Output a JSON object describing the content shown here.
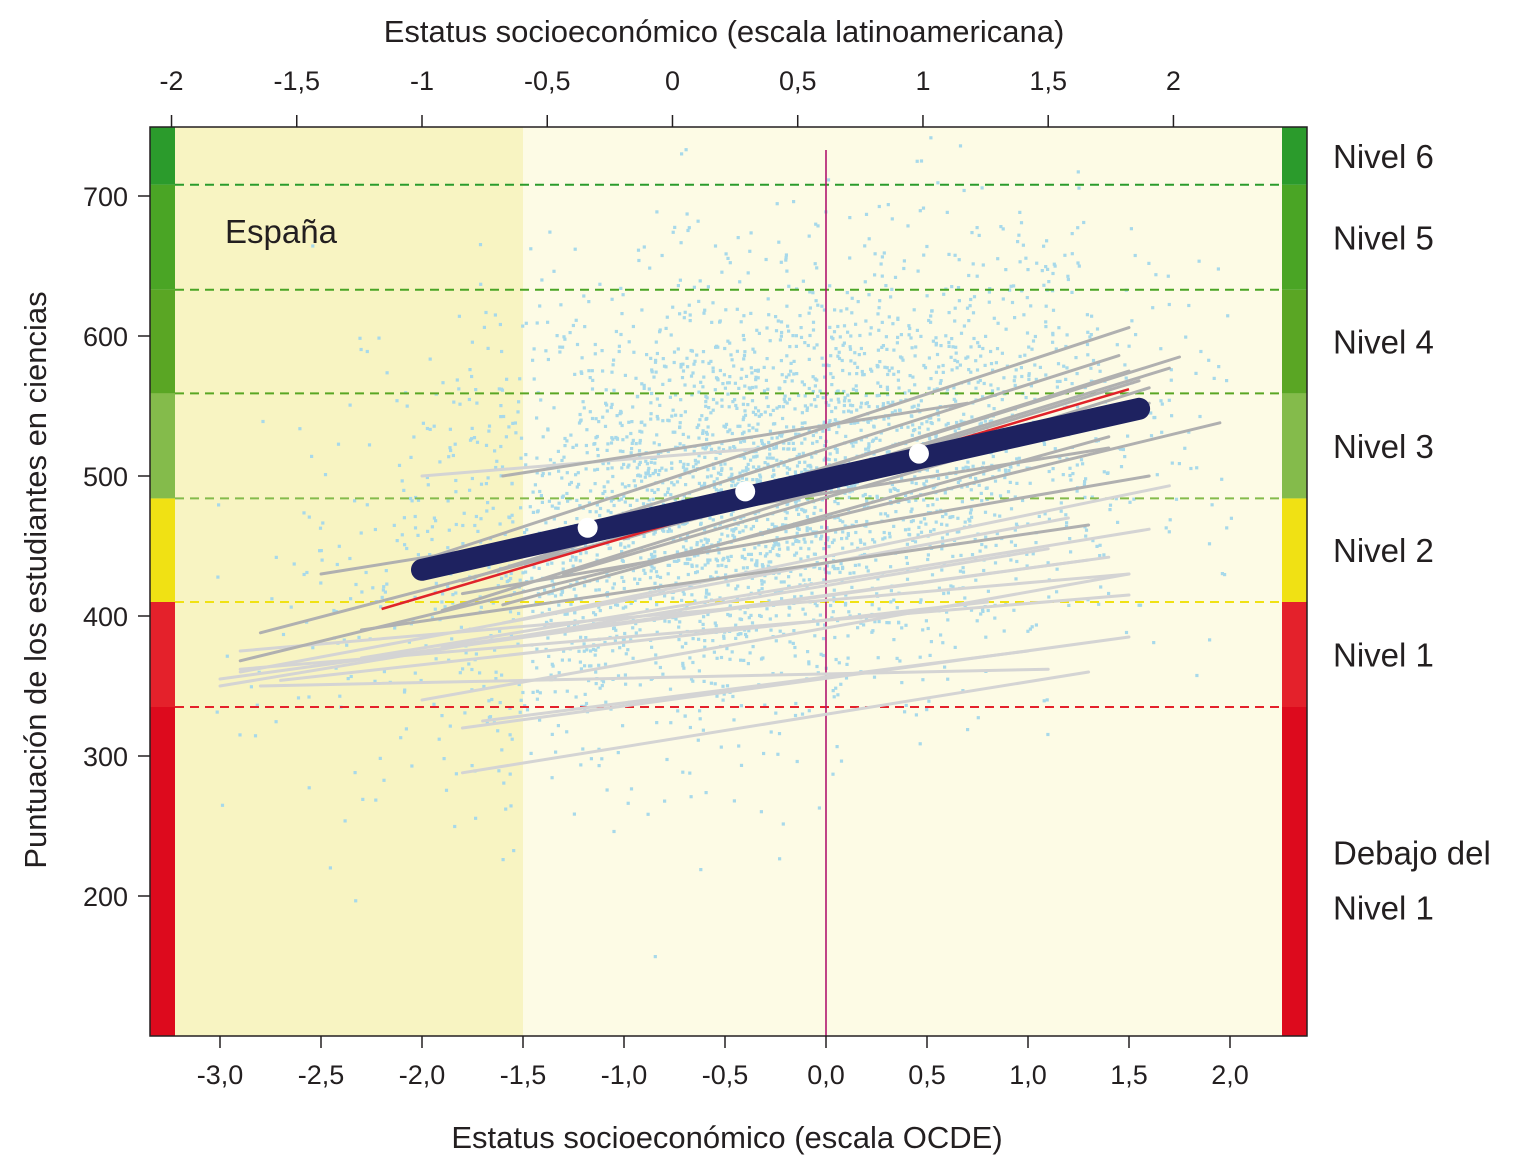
{
  "colors": {
    "plot_bg_light": "#fdfbe5",
    "plot_bg_shaded": "#f8f4c2",
    "scatter_point": "#a7d9ea",
    "gray_line": "#b0b0b0",
    "light_gray_line": "#d4d4d4",
    "main_line": "#1e2260",
    "red_line": "#e0232a",
    "zero_line": "#b0166e",
    "white_marker": "#ffffff"
  },
  "chart_data": {
    "type": "scatter",
    "title": "",
    "country_label": "España",
    "xlabel": "Estatus socioeconómico (escala OCDE)",
    "x2label": "Estatus socioeconómico (escala latinoamericana)",
    "ylabel": "Puntuación de los estudiantes en ciencias",
    "xlim": [
      -3.35,
      2.35
    ],
    "ylim": [
      100,
      750
    ],
    "x_ticks": [
      "-3,0",
      "-2,5",
      "-2,0",
      "-1,5",
      "-1,0",
      "-0,5",
      "0,0",
      "0,5",
      "1,0",
      "1,5",
      "2,0"
    ],
    "x_tick_values": [
      -3.0,
      -2.5,
      -2.0,
      -1.5,
      -1.0,
      -0.5,
      0.0,
      0.5,
      1.0,
      1.5,
      2.0
    ],
    "x2_ticks": [
      "-2",
      "-1,5",
      "-1",
      "-0,5",
      "0",
      "0,5",
      "1",
      "1,5",
      "2"
    ],
    "x2_tick_values": [
      -3.24,
      -2.62,
      -2.0,
      -1.38,
      -0.76,
      -0.14,
      0.48,
      1.1,
      1.72
    ],
    "y_ticks": [
      "200",
      "300",
      "400",
      "500",
      "600",
      "700"
    ],
    "y_tick_values": [
      200,
      300,
      400,
      500,
      600,
      700
    ],
    "shaded_region_x": [
      -3.35,
      -1.5
    ],
    "vertical_line_x": 0.0,
    "levels": [
      {
        "name": "Debajo del",
        "name2": "Nivel 1",
        "from": 100,
        "to": 335,
        "color": "#dd0a1d"
      },
      {
        "name": "Nivel 1",
        "from": 335,
        "to": 410,
        "color": "#e4212b"
      },
      {
        "name": "Nivel 2",
        "from": 410,
        "to": 484,
        "color": "#f0e114"
      },
      {
        "name": "Nivel 3",
        "from": 484,
        "to": 559,
        "color": "#84bb4b"
      },
      {
        "name": "Nivel 4",
        "from": 559,
        "to": 633,
        "color": "#5aa624"
      },
      {
        "name": "Nivel 5",
        "from": 633,
        "to": 708,
        "color": "#4aa525"
      },
      {
        "name": "Nivel 6",
        "from": 708,
        "to": 750,
        "color": "#2b9b2c"
      }
    ],
    "level_thresholds": [
      {
        "y": 335,
        "color": "#e4212b"
      },
      {
        "y": 410,
        "color": "#f0e114"
      },
      {
        "y": 484,
        "color": "#84bb4b"
      },
      {
        "y": 559,
        "color": "#5aa624"
      },
      {
        "y": 633,
        "color": "#4aa525"
      },
      {
        "y": 708,
        "color": "#2b9b2c"
      }
    ],
    "main_gradient": {
      "x": [
        -2.0,
        1.55
      ],
      "y": [
        433,
        548
      ]
    },
    "main_gradient_markers": [
      {
        "x": -1.18,
        "y": 463
      },
      {
        "x": -0.4,
        "y": 489
      },
      {
        "x": 0.46,
        "y": 516
      }
    ],
    "red_gradient": {
      "x": [
        -2.2,
        1.5
      ],
      "y": [
        405,
        562
      ]
    },
    "regional_gradients": [
      {
        "x": [
          -2.0,
          1.5
        ],
        "y": [
          440,
          606
        ],
        "shade": "gray"
      },
      {
        "x": [
          -1.9,
          1.45
        ],
        "y": [
          432,
          586
        ],
        "shade": "gray"
      },
      {
        "x": [
          -1.8,
          1.75
        ],
        "y": [
          425,
          585
        ],
        "shade": "gray"
      },
      {
        "x": [
          -1.5,
          1.5
        ],
        "y": [
          438,
          575
        ],
        "shade": "gray"
      },
      {
        "x": [
          -1.2,
          1.7
        ],
        "y": [
          448,
          577
        ],
        "shade": "gray"
      },
      {
        "x": [
          -1.0,
          1.55
        ],
        "y": [
          455,
          568
        ],
        "shade": "gray"
      },
      {
        "x": [
          -1.9,
          1.6
        ],
        "y": [
          404,
          563
        ],
        "shade": "gray"
      },
      {
        "x": [
          -1.3,
          1.6
        ],
        "y": [
          430,
          552
        ],
        "shade": "gray"
      },
      {
        "x": [
          -2.8,
          1.3
        ],
        "y": [
          388,
          543
        ],
        "shade": "gray"
      },
      {
        "x": [
          -2.9,
          1.95
        ],
        "y": [
          368,
          538
        ],
        "shade": "gray"
      },
      {
        "x": [
          -1.6,
          1.4
        ],
        "y": [
          408,
          528
        ],
        "shade": "gray"
      },
      {
        "x": [
          -2.3,
          1.3
        ],
        "y": [
          390,
          465
        ],
        "shade": "gray"
      },
      {
        "x": [
          -2.5,
          1.4
        ],
        "y": [
          430,
          520
        ],
        "shade": "gray"
      },
      {
        "x": [
          -1.8,
          1.6
        ],
        "y": [
          416,
          500
        ],
        "shade": "gray"
      },
      {
        "x": [
          -1.6,
          0.7
        ],
        "y": [
          500,
          552
        ],
        "shade": "gray"
      },
      {
        "x": [
          -2.0,
          -0.3
        ],
        "y": [
          500,
          520
        ],
        "shade": "light"
      },
      {
        "x": [
          -2.9,
          1.2
        ],
        "y": [
          360,
          470
        ],
        "shade": "light"
      },
      {
        "x": [
          -3.0,
          1.1
        ],
        "y": [
          350,
          448
        ],
        "shade": "light"
      },
      {
        "x": [
          -3.0,
          1.4
        ],
        "y": [
          355,
          442
        ],
        "shade": "light"
      },
      {
        "x": [
          -2.9,
          1.5
        ],
        "y": [
          375,
          430
        ],
        "shade": "light"
      },
      {
        "x": [
          -2.7,
          0.8
        ],
        "y": [
          354,
          410
        ],
        "shade": "light"
      },
      {
        "x": [
          -2.9,
          1.5
        ],
        "y": [
          362,
          415
        ],
        "shade": "light"
      },
      {
        "x": [
          -2.8,
          1.1
        ],
        "y": [
          350,
          362
        ],
        "shade": "light"
      },
      {
        "x": [
          -2.0,
          1.5
        ],
        "y": [
          340,
          430
        ],
        "shade": "light"
      },
      {
        "x": [
          -1.8,
          1.5
        ],
        "y": [
          320,
          385
        ],
        "shade": "light"
      },
      {
        "x": [
          -1.8,
          1.3
        ],
        "y": [
          288,
          360
        ],
        "shade": "light"
      },
      {
        "x": [
          -1.7,
          1.0
        ],
        "y": [
          325,
          375
        ],
        "shade": "light"
      },
      {
        "x": [
          -2.3,
          1.6
        ],
        "y": [
          370,
          462
        ],
        "shade": "light"
      },
      {
        "x": [
          -1.6,
          1.7
        ],
        "y": [
          395,
          493
        ],
        "shade": "light"
      },
      {
        "x": [
          -1.9,
          1.3
        ],
        "y": [
          378,
          440
        ],
        "shade": "light"
      }
    ]
  }
}
